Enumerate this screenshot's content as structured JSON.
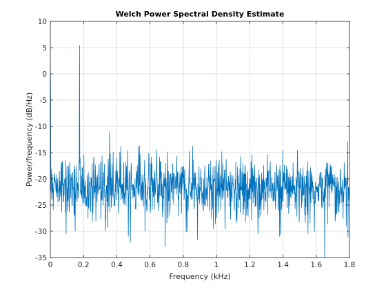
{
  "chart_data": {
    "type": "line",
    "title": "Welch Power Spectral Density Estimate",
    "xlabel": "Frequency (kHz)",
    "ylabel": "Power/frequency (dB/Hz)",
    "xlim": [
      0,
      1.8
    ],
    "ylim": [
      -35,
      10
    ],
    "xticks": [
      0,
      0.2,
      0.4,
      0.6,
      0.8,
      1,
      1.2,
      1.4,
      1.6,
      1.8
    ],
    "xtick_labels": [
      "0",
      "0.2",
      "0.4",
      "0.6",
      "0.8",
      "1",
      "1.2",
      "1.4",
      "1.6",
      "1.8"
    ],
    "yticks": [
      10,
      5,
      0,
      -5,
      -10,
      -15,
      -20,
      -25,
      -30,
      -35
    ],
    "ytick_labels": [
      "10",
      "5",
      "0",
      "-5",
      "-10",
      "-15",
      "-20",
      "-25",
      "-30",
      "-35"
    ],
    "grid": true,
    "line_color": "#0072BD",
    "series": [
      {
        "sample_count": 1025,
        "baseline_db": -21.5,
        "noise_spread_db": 3.6,
        "points": [
          [
            0.0,
            1.5
          ],
          [
            0.002,
            -3.0
          ],
          [
            0.005,
            -18.0
          ],
          [
            0.01,
            -23.5
          ],
          [
            0.03,
            -20.5
          ],
          [
            0.06,
            -21.0
          ],
          [
            0.09,
            -21.5
          ],
          [
            0.12,
            -20.0
          ],
          [
            0.15,
            -21.5
          ],
          [
            0.172,
            -16.5
          ],
          [
            0.176,
            5.5
          ],
          [
            0.18,
            -16.0
          ],
          [
            0.2,
            -21.0
          ],
          [
            0.25,
            -21.5
          ],
          [
            0.3,
            -21.0
          ],
          [
            0.35,
            -18.0
          ],
          [
            0.356,
            -11.0
          ],
          [
            0.362,
            -18.5
          ],
          [
            0.4,
            -21.0
          ],
          [
            0.45,
            -21.5
          ],
          [
            0.5,
            -21.0
          ],
          [
            0.55,
            -21.0
          ],
          [
            0.6,
            -21.5
          ],
          [
            0.65,
            -21.0
          ],
          [
            0.7,
            -22.0
          ],
          [
            0.75,
            -21.5
          ],
          [
            0.8,
            -21.0
          ],
          [
            0.85,
            -21.0
          ],
          [
            0.9,
            -21.5
          ],
          [
            0.95,
            -21.5
          ],
          [
            1.0,
            -21.0
          ],
          [
            1.05,
            -21.5
          ],
          [
            1.1,
            -21.0
          ],
          [
            1.15,
            -21.5
          ],
          [
            1.2,
            -21.0
          ],
          [
            1.25,
            -22.0
          ],
          [
            1.3,
            -21.5
          ],
          [
            1.35,
            -21.5
          ],
          [
            1.4,
            -21.0
          ],
          [
            1.45,
            -21.5
          ],
          [
            1.5,
            -21.0
          ],
          [
            1.55,
            -21.5
          ],
          [
            1.6,
            -21.5
          ],
          [
            1.65,
            -22.0
          ],
          [
            1.7,
            -21.0
          ],
          [
            1.75,
            -21.5
          ],
          [
            1.8,
            -21.0
          ]
        ],
        "extremes": [
          [
            0.0,
            1.5
          ],
          [
            0.176,
            5.5
          ],
          [
            0.356,
            -11.0
          ],
          [
            0.095,
            -30.5
          ],
          [
            0.15,
            -30.0
          ],
          [
            0.33,
            -30.0
          ],
          [
            0.47,
            -31.0
          ],
          [
            0.57,
            -30.0
          ],
          [
            0.69,
            -33.0
          ],
          [
            0.98,
            -29.5
          ],
          [
            1.25,
            -30.5
          ],
          [
            1.38,
            -31.0
          ],
          [
            1.55,
            -30.5
          ],
          [
            1.65,
            -35.0
          ],
          [
            1.78,
            -29.0
          ],
          [
            1.79,
            -13.0
          ],
          [
            0.53,
            -14.0
          ],
          [
            1.4,
            -14.5
          ],
          [
            0.64,
            -14.5
          ]
        ]
      }
    ]
  }
}
